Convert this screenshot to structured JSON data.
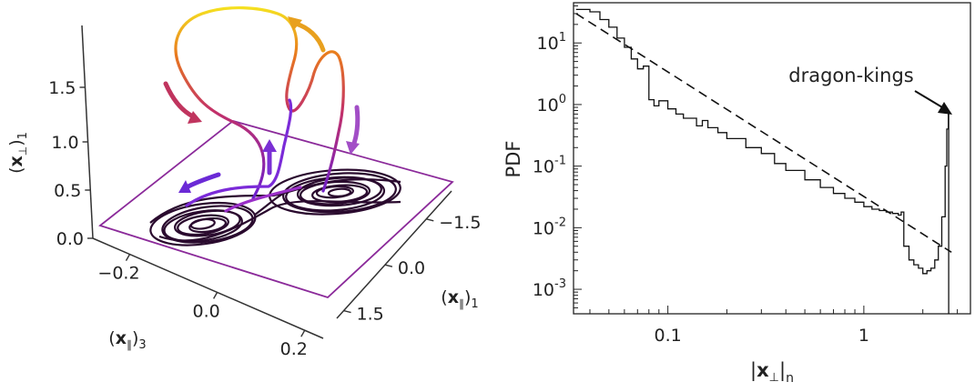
{
  "chart_data": [
    {
      "type": "line",
      "subtype": "3d-attractor",
      "axes": {
        "vertical": {
          "label": "(x⊥)1",
          "ticks": [
            "0.0",
            "0.5",
            "1.0",
            "1.5"
          ]
        },
        "front": {
          "label": "(x∥)3",
          "ticks": [
            "−0.2",
            "0.0",
            "0.2"
          ]
        },
        "side": {
          "label": "(x∥)1",
          "ticks": [
            "−1.5",
            "0.0",
            "1.5"
          ]
        }
      },
      "colors": {
        "plane": "#8b2a9a",
        "attractor": "#2a0a2e",
        "excursion_low": "#6a1fd0",
        "excursion_high": "#f5e020"
      }
    },
    {
      "type": "line",
      "scale": "log-log",
      "xlabel": "|x⊥|n",
      "ylabel": "PDF",
      "xlim": [
        0.033,
        3.5
      ],
      "ylim": [
        0.0004,
        45
      ],
      "xticks": [
        {
          "value": 0.1,
          "label": "0.1"
        },
        {
          "value": 1,
          "label": "1"
        }
      ],
      "yticks": [
        {
          "value": 10,
          "base": "10",
          "exp": "1"
        },
        {
          "value": 1,
          "base": "10",
          "exp": "0"
        },
        {
          "value": 0.1,
          "base": "10",
          "exp": "-1"
        },
        {
          "value": 0.01,
          "base": "10",
          "exp": "-2"
        },
        {
          "value": 0.001,
          "base": "10",
          "exp": "-3"
        }
      ],
      "annotation": {
        "text": "dragon-kings",
        "x": 2.8,
        "y": 0.75
      },
      "series": [
        {
          "style": "solid",
          "points": [
            [
              0.034,
              35
            ],
            [
              0.04,
              32
            ],
            [
              0.045,
              24
            ],
            [
              0.05,
              18
            ],
            [
              0.055,
              12
            ],
            [
              0.06,
              8.5
            ],
            [
              0.065,
              5.5
            ],
            [
              0.07,
              3.8
            ],
            [
              0.075,
              4.2
            ],
            [
              0.08,
              1.2
            ],
            [
              0.085,
              0.95
            ],
            [
              0.09,
              1.15
            ],
            [
              0.1,
              0.85
            ],
            [
              0.11,
              0.7
            ],
            [
              0.12,
              0.6
            ],
            [
              0.14,
              0.45
            ],
            [
              0.15,
              0.55
            ],
            [
              0.16,
              0.42
            ],
            [
              0.18,
              0.35
            ],
            [
              0.2,
              0.28
            ],
            [
              0.25,
              0.2
            ],
            [
              0.3,
              0.16
            ],
            [
              0.35,
              0.11
            ],
            [
              0.4,
              0.085
            ],
            [
              0.5,
              0.06
            ],
            [
              0.6,
              0.045
            ],
            [
              0.7,
              0.036
            ],
            [
              0.8,
              0.03
            ],
            [
              0.9,
              0.026
            ],
            [
              1.0,
              0.022
            ],
            [
              1.1,
              0.02
            ],
            [
              1.2,
              0.019
            ],
            [
              1.3,
              0.018
            ],
            [
              1.4,
              0.017
            ],
            [
              1.5,
              0.016
            ],
            [
              1.55,
              0.018
            ],
            [
              1.6,
              0.005
            ],
            [
              1.7,
              0.003
            ],
            [
              1.8,
              0.0025
            ],
            [
              1.9,
              0.0022
            ],
            [
              2.0,
              0.0018
            ],
            [
              2.1,
              0.002
            ],
            [
              2.2,
              0.0022
            ],
            [
              2.3,
              0.003
            ],
            [
              2.4,
              0.005
            ],
            [
              2.5,
              0.015
            ],
            [
              2.6,
              0.1
            ],
            [
              2.65,
              0.4
            ],
            [
              2.7,
              0.75
            ],
            [
              2.71,
              0.0001
            ]
          ]
        },
        {
          "style": "dashed",
          "points": [
            [
              0.034,
              30
            ],
            [
              2.8,
              0.004
            ]
          ]
        }
      ]
    }
  ]
}
